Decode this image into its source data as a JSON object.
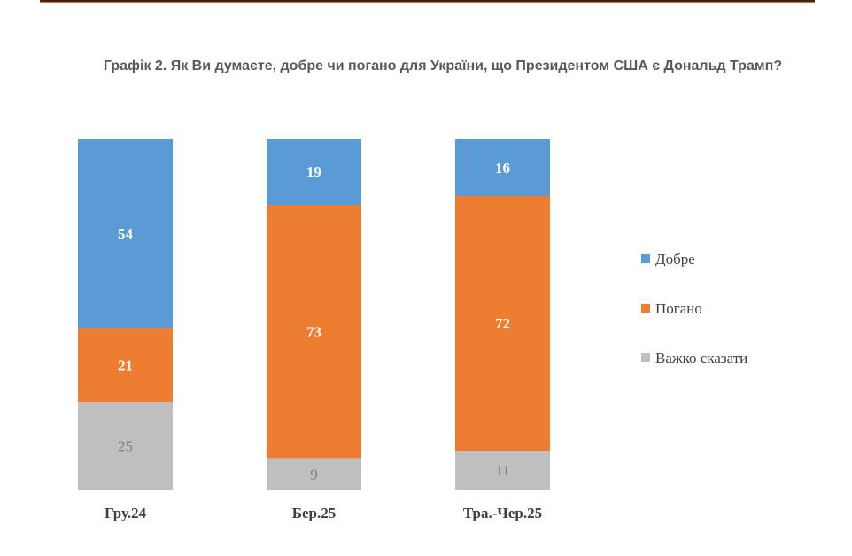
{
  "chart_data": {
    "type": "bar",
    "stacked": true,
    "title": "Графік 2. Як Ви думаєте, добре чи погано для України, що Президентом США є Дональд Трамп?",
    "categories": [
      "Гру.24",
      "Бер.25",
      "Тра.-Чер.25"
    ],
    "series": [
      {
        "name": "Добре",
        "values": [
          54,
          19,
          16
        ],
        "color": "#5b9bd5"
      },
      {
        "name": "Погано",
        "values": [
          21,
          73,
          72
        ],
        "color": "#ed7d31"
      },
      {
        "name": "Важко сказати",
        "values": [
          25,
          9,
          11
        ],
        "color": "#bfbfbf"
      }
    ],
    "ylim": [
      0,
      100
    ],
    "grid": false,
    "legend_position": "right"
  }
}
